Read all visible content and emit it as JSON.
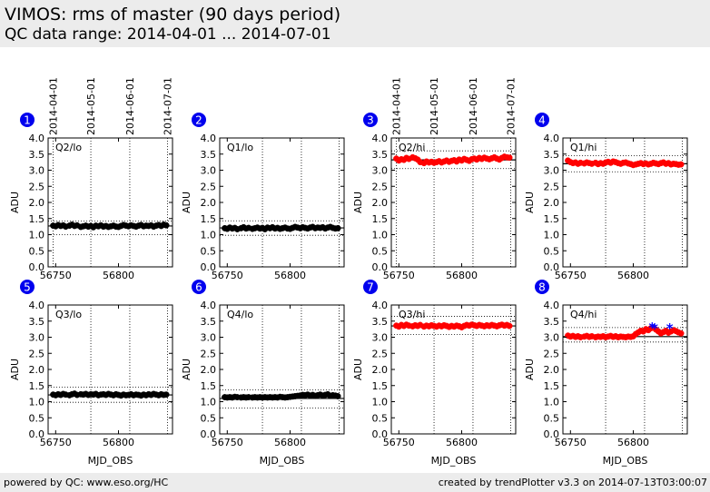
{
  "header": {
    "title": "VIMOS: rms of master (90 days period)",
    "subtitle": "QC data range: 2014-04-01 ... 2014-07-01"
  },
  "footer": {
    "left": "powered by QC: www.eso.org/HC",
    "right": "created by trendPlotter v3.3 on 2014-07-13T03:00:07"
  },
  "chart_data": [
    {
      "type": "scatter",
      "panel": "1",
      "label": "Q2/lo",
      "color": "#000000",
      "xlabel": "",
      "ylabel": "ADU",
      "xlim": [
        56744,
        56843
      ],
      "ylim": [
        0,
        4
      ],
      "xticks": [
        "56750",
        "56800"
      ],
      "yticks": [
        "0.0",
        "0.5",
        "1.0",
        "1.5",
        "2.0",
        "2.5",
        "3.0",
        "3.5",
        "4.0"
      ],
      "date_ticks": [
        "2014-04-01",
        "2014-05-01",
        "2014-06-01",
        "2014-07-01"
      ],
      "date_tick_mjd": [
        56748,
        56778,
        56809,
        56839
      ],
      "ref_line": 1.27,
      "ref_lines_dotted": [
        1.42,
        1.0
      ],
      "x": [
        56748,
        56750,
        56752,
        56754,
        56756,
        56758,
        56761,
        56763,
        56765,
        56767,
        56770,
        56772,
        56774,
        56776,
        56778,
        56780,
        56782,
        56784,
        56786,
        56788,
        56790,
        56792,
        56794,
        56796,
        56798,
        56800,
        56802,
        56804,
        56806,
        56808,
        56810,
        56812,
        56814,
        56816,
        56818,
        56820,
        56822,
        56824,
        56826,
        56828,
        56830,
        56832,
        56834,
        56836,
        56838
      ],
      "y": [
        1.28,
        1.26,
        1.3,
        1.27,
        1.29,
        1.25,
        1.28,
        1.31,
        1.27,
        1.29,
        1.24,
        1.26,
        1.28,
        1.25,
        1.27,
        1.23,
        1.28,
        1.26,
        1.29,
        1.25,
        1.27,
        1.24,
        1.26,
        1.28,
        1.25,
        1.24,
        1.27,
        1.3,
        1.28,
        1.26,
        1.29,
        1.27,
        1.25,
        1.28,
        1.3,
        1.26,
        1.28,
        1.27,
        1.29,
        1.25,
        1.28,
        1.3,
        1.27,
        1.31,
        1.29
      ]
    },
    {
      "type": "scatter",
      "panel": "2",
      "label": "Q1/lo",
      "color": "#000000",
      "xlabel": "",
      "ylabel": "ADU",
      "xlim": [
        56744,
        56843
      ],
      "ylim": [
        0,
        4
      ],
      "xticks": [
        "56750",
        "56800"
      ],
      "yticks": [
        "0.0",
        "0.5",
        "1.0",
        "1.5",
        "2.0",
        "2.5",
        "3.0",
        "3.5",
        "4.0"
      ],
      "date_ticks": [],
      "date_tick_mjd": [
        56778,
        56809,
        56839
      ],
      "ref_line": 1.21,
      "ref_lines_dotted": [
        1.43,
        0.98
      ],
      "x": [
        56748,
        56750,
        56752,
        56754,
        56756,
        56758,
        56761,
        56763,
        56765,
        56767,
        56770,
        56772,
        56774,
        56776,
        56778,
        56780,
        56782,
        56784,
        56786,
        56788,
        56790,
        56792,
        56794,
        56796,
        56798,
        56800,
        56802,
        56804,
        56806,
        56808,
        56810,
        56812,
        56814,
        56816,
        56818,
        56820,
        56822,
        56824,
        56826,
        56828,
        56830,
        56832,
        56834,
        56836,
        56838
      ],
      "y": [
        1.2,
        1.18,
        1.22,
        1.19,
        1.21,
        1.17,
        1.2,
        1.23,
        1.19,
        1.21,
        1.18,
        1.2,
        1.22,
        1.19,
        1.21,
        1.17,
        1.22,
        1.2,
        1.23,
        1.19,
        1.21,
        1.18,
        1.2,
        1.22,
        1.19,
        1.18,
        1.21,
        1.24,
        1.22,
        1.2,
        1.23,
        1.21,
        1.19,
        1.22,
        1.24,
        1.2,
        1.22,
        1.21,
        1.23,
        1.19,
        1.22,
        1.24,
        1.21,
        1.19,
        1.2
      ]
    },
    {
      "type": "scatter",
      "panel": "3",
      "label": "Q2/hi",
      "color": "#ff0000",
      "xlabel": "",
      "ylabel": "ADU",
      "xlim": [
        56744,
        56843
      ],
      "ylim": [
        0,
        4
      ],
      "xticks": [
        "56750",
        "56800"
      ],
      "yticks": [
        "0.0",
        "0.5",
        "1.0",
        "1.5",
        "2.0",
        "2.5",
        "3.0",
        "3.5",
        "4.0"
      ],
      "date_ticks": [
        "2014-04-01",
        "2014-05-01",
        "2014-06-01",
        "2014-07-01"
      ],
      "date_tick_mjd": [
        56748,
        56778,
        56809,
        56839
      ],
      "ref_line": 3.32,
      "ref_lines_dotted": [
        3.6,
        3.05
      ],
      "x": [
        56748,
        56750,
        56752,
        56754,
        56756,
        56758,
        56761,
        56763,
        56765,
        56767,
        56770,
        56772,
        56774,
        56776,
        56778,
        56780,
        56782,
        56784,
        56786,
        56788,
        56790,
        56792,
        56794,
        56796,
        56798,
        56800,
        56802,
        56804,
        56806,
        56808,
        56810,
        56812,
        56814,
        56816,
        56818,
        56820,
        56822,
        56824,
        56826,
        56828,
        56830,
        56832,
        56834,
        56836,
        56838
      ],
      "y": [
        3.36,
        3.3,
        3.34,
        3.32,
        3.38,
        3.35,
        3.4,
        3.37,
        3.33,
        3.25,
        3.22,
        3.27,
        3.24,
        3.26,
        3.23,
        3.25,
        3.28,
        3.24,
        3.27,
        3.3,
        3.26,
        3.29,
        3.31,
        3.27,
        3.33,
        3.3,
        3.35,
        3.32,
        3.29,
        3.34,
        3.36,
        3.33,
        3.38,
        3.35,
        3.39,
        3.36,
        3.34,
        3.37,
        3.4,
        3.36,
        3.33,
        3.38,
        3.42,
        3.4,
        3.39
      ]
    },
    {
      "type": "scatter",
      "panel": "4",
      "label": "Q1/hi",
      "color": "#ff0000",
      "xlabel": "",
      "ylabel": "ADU",
      "xlim": [
        56744,
        56843
      ],
      "ylim": [
        0,
        4
      ],
      "xticks": [
        "56750",
        "56800"
      ],
      "yticks": [
        "0.0",
        "0.5",
        "1.0",
        "1.5",
        "2.0",
        "2.5",
        "3.0",
        "3.5",
        "4.0"
      ],
      "date_ticks": [],
      "date_tick_mjd": [
        56778,
        56809,
        56839
      ],
      "ref_line": 3.2,
      "ref_lines_dotted": [
        3.45,
        2.95
      ],
      "x": [
        56748,
        56750,
        56752,
        56754,
        56756,
        56758,
        56761,
        56763,
        56765,
        56767,
        56770,
        56772,
        56774,
        56776,
        56778,
        56780,
        56782,
        56784,
        56786,
        56788,
        56790,
        56792,
        56794,
        56796,
        56798,
        56800,
        56802,
        56804,
        56806,
        56808,
        56810,
        56812,
        56814,
        56816,
        56818,
        56820,
        56822,
        56824,
        56826,
        56828,
        56830,
        56832,
        56834,
        56836,
        56838
      ],
      "y": [
        3.3,
        3.25,
        3.22,
        3.24,
        3.2,
        3.23,
        3.21,
        3.24,
        3.22,
        3.2,
        3.23,
        3.19,
        3.22,
        3.2,
        3.24,
        3.26,
        3.23,
        3.27,
        3.25,
        3.22,
        3.2,
        3.23,
        3.24,
        3.21,
        3.19,
        3.16,
        3.18,
        3.2,
        3.22,
        3.19,
        3.21,
        3.18,
        3.2,
        3.23,
        3.21,
        3.19,
        3.22,
        3.24,
        3.2,
        3.22,
        3.18,
        3.2,
        3.19,
        3.17,
        3.18
      ]
    },
    {
      "type": "scatter",
      "panel": "5",
      "label": "Q3/lo",
      "color": "#000000",
      "xlabel": "MJD_OBS",
      "ylabel": "ADU",
      "xlim": [
        56744,
        56843
      ],
      "ylim": [
        0,
        4
      ],
      "xticks": [
        "56750",
        "56800"
      ],
      "yticks": [
        "0.0",
        "0.5",
        "1.0",
        "1.5",
        "2.0",
        "2.5",
        "3.0",
        "3.5",
        "4.0"
      ],
      "date_ticks": [],
      "date_tick_mjd": [
        56778,
        56809,
        56839
      ],
      "ref_line": 1.21,
      "ref_lines_dotted": [
        1.45,
        0.98
      ],
      "x": [
        56748,
        56750,
        56752,
        56754,
        56756,
        56758,
        56761,
        56763,
        56765,
        56767,
        56770,
        56772,
        56774,
        56776,
        56778,
        56780,
        56782,
        56784,
        56786,
        56788,
        56790,
        56792,
        56794,
        56796,
        56798,
        56800,
        56802,
        56804,
        56806,
        56808,
        56810,
        56812,
        56814,
        56816,
        56818,
        56820,
        56822,
        56824,
        56826,
        56828,
        56830,
        56832,
        56834,
        56836,
        56838
      ],
      "y": [
        1.22,
        1.2,
        1.23,
        1.21,
        1.24,
        1.22,
        1.2,
        1.23,
        1.25,
        1.21,
        1.23,
        1.22,
        1.24,
        1.21,
        1.23,
        1.22,
        1.24,
        1.2,
        1.22,
        1.23,
        1.21,
        1.24,
        1.22,
        1.2,
        1.23,
        1.21,
        1.19,
        1.22,
        1.2,
        1.21,
        1.23,
        1.2,
        1.22,
        1.21,
        1.19,
        1.22,
        1.2,
        1.23,
        1.21,
        1.24,
        1.22,
        1.2,
        1.23,
        1.21,
        1.22
      ]
    },
    {
      "type": "scatter",
      "panel": "6",
      "label": "Q4/lo",
      "color": "#000000",
      "xlabel": "MJD_OBS",
      "ylabel": "ADU",
      "xlim": [
        56744,
        56843
      ],
      "ylim": [
        0,
        4
      ],
      "xticks": [
        "56750",
        "56800"
      ],
      "yticks": [
        "0.0",
        "0.5",
        "1.0",
        "1.5",
        "2.0",
        "2.5",
        "3.0",
        "3.5",
        "4.0"
      ],
      "date_ticks": [],
      "date_tick_mjd": [
        56778,
        56809,
        56839
      ],
      "ref_line": 1.1,
      "ref_lines_dotted": [
        1.37,
        0.8
      ],
      "x": [
        56748,
        56750,
        56752,
        56754,
        56756,
        56758,
        56761,
        56763,
        56765,
        56767,
        56770,
        56772,
        56774,
        56776,
        56778,
        56780,
        56782,
        56784,
        56786,
        56788,
        56790,
        56792,
        56794,
        56796,
        56798,
        56800,
        56802,
        56804,
        56806,
        56808,
        56810,
        56812,
        56814,
        56816,
        56818,
        56820,
        56822,
        56824,
        56826,
        56828,
        56830,
        56832,
        56834,
        56836,
        56838
      ],
      "y": [
        1.14,
        1.13,
        1.14,
        1.13,
        1.15,
        1.14,
        1.13,
        1.14,
        1.13,
        1.14,
        1.13,
        1.14,
        1.13,
        1.14,
        1.13,
        1.14,
        1.13,
        1.14,
        1.13,
        1.14,
        1.13,
        1.15,
        1.14,
        1.13,
        1.14,
        1.15,
        1.16,
        1.17,
        1.18,
        1.19,
        1.21,
        1.2,
        1.22,
        1.19,
        1.21,
        1.18,
        1.2,
        1.22,
        1.19,
        1.21,
        1.23,
        1.18,
        1.2,
        1.19,
        1.17
      ]
    },
    {
      "type": "scatter",
      "panel": "7",
      "label": "Q3/hi",
      "color": "#ff0000",
      "xlabel": "MJD_OBS",
      "ylabel": "ADU",
      "xlim": [
        56744,
        56843
      ],
      "ylim": [
        0,
        4
      ],
      "xticks": [
        "56750",
        "56800"
      ],
      "yticks": [
        "0.0",
        "0.5",
        "1.0",
        "1.5",
        "2.0",
        "2.5",
        "3.0",
        "3.5",
        "4.0"
      ],
      "date_ticks": [],
      "date_tick_mjd": [
        56778,
        56809,
        56839
      ],
      "ref_line": 3.35,
      "ref_lines_dotted": [
        3.65,
        3.08
      ],
      "x": [
        56748,
        56750,
        56752,
        56754,
        56756,
        56758,
        56761,
        56763,
        56765,
        56767,
        56770,
        56772,
        56774,
        56776,
        56778,
        56780,
        56782,
        56784,
        56786,
        56788,
        56790,
        56792,
        56794,
        56796,
        56798,
        56800,
        56802,
        56804,
        56806,
        56808,
        56810,
        56812,
        56814,
        56816,
        56818,
        56820,
        56822,
        56824,
        56826,
        56828,
        56830,
        56832,
        56834,
        56836,
        56838
      ],
      "y": [
        3.36,
        3.33,
        3.38,
        3.35,
        3.39,
        3.36,
        3.34,
        3.37,
        3.35,
        3.38,
        3.33,
        3.36,
        3.34,
        3.37,
        3.35,
        3.33,
        3.36,
        3.34,
        3.37,
        3.35,
        3.32,
        3.35,
        3.33,
        3.36,
        3.34,
        3.31,
        3.35,
        3.38,
        3.36,
        3.39,
        3.37,
        3.35,
        3.38,
        3.36,
        3.34,
        3.37,
        3.35,
        3.38,
        3.36,
        3.34,
        3.37,
        3.39,
        3.36,
        3.38,
        3.35
      ]
    },
    {
      "type": "scatter",
      "panel": "8",
      "label": "Q4/hi",
      "color": "#ff0000",
      "xlabel": "MJD_OBS",
      "ylabel": "ADU",
      "xlim": [
        56744,
        56843
      ],
      "ylim": [
        0,
        4
      ],
      "xticks": [
        "56750",
        "56800"
      ],
      "yticks": [
        "0.0",
        "0.5",
        "1.0",
        "1.5",
        "2.0",
        "2.5",
        "3.0",
        "3.5",
        "4.0"
      ],
      "date_ticks": [],
      "date_tick_mjd": [
        56778,
        56809,
        56839
      ],
      "ref_line": 3.02,
      "ref_lines_dotted": [
        3.3,
        2.85
      ],
      "x": [
        56748,
        56750,
        56752,
        56754,
        56756,
        56758,
        56761,
        56763,
        56765,
        56767,
        56770,
        56772,
        56774,
        56776,
        56778,
        56780,
        56782,
        56784,
        56786,
        56788,
        56790,
        56792,
        56794,
        56796,
        56798,
        56800,
        56802,
        56804,
        56806,
        56808,
        56810,
        56812,
        56814,
        56816,
        56818,
        56820,
        56822,
        56824,
        56826,
        56828,
        56830,
        56832,
        56834,
        56836,
        56838
      ],
      "y": [
        3.05,
        3.02,
        3.04,
        3.01,
        3.03,
        3.0,
        3.02,
        3.04,
        3.01,
        3.03,
        3.0,
        3.02,
        3.01,
        3.03,
        3.0,
        3.02,
        3.04,
        3.01,
        3.03,
        3.0,
        3.02,
        3.01,
        3.0,
        3.02,
        3.01,
        3.03,
        3.1,
        3.15,
        3.2,
        3.18,
        3.25,
        3.22,
        3.28,
        3.3,
        3.24,
        3.18,
        3.12,
        3.16,
        3.2,
        3.14,
        3.18,
        3.22,
        3.19,
        3.15,
        3.12
      ],
      "outliers": {
        "color": "#0000ff",
        "x": [
          56815,
          56817,
          56829
        ],
        "y": [
          3.32,
          3.3,
          3.29
        ]
      }
    }
  ]
}
